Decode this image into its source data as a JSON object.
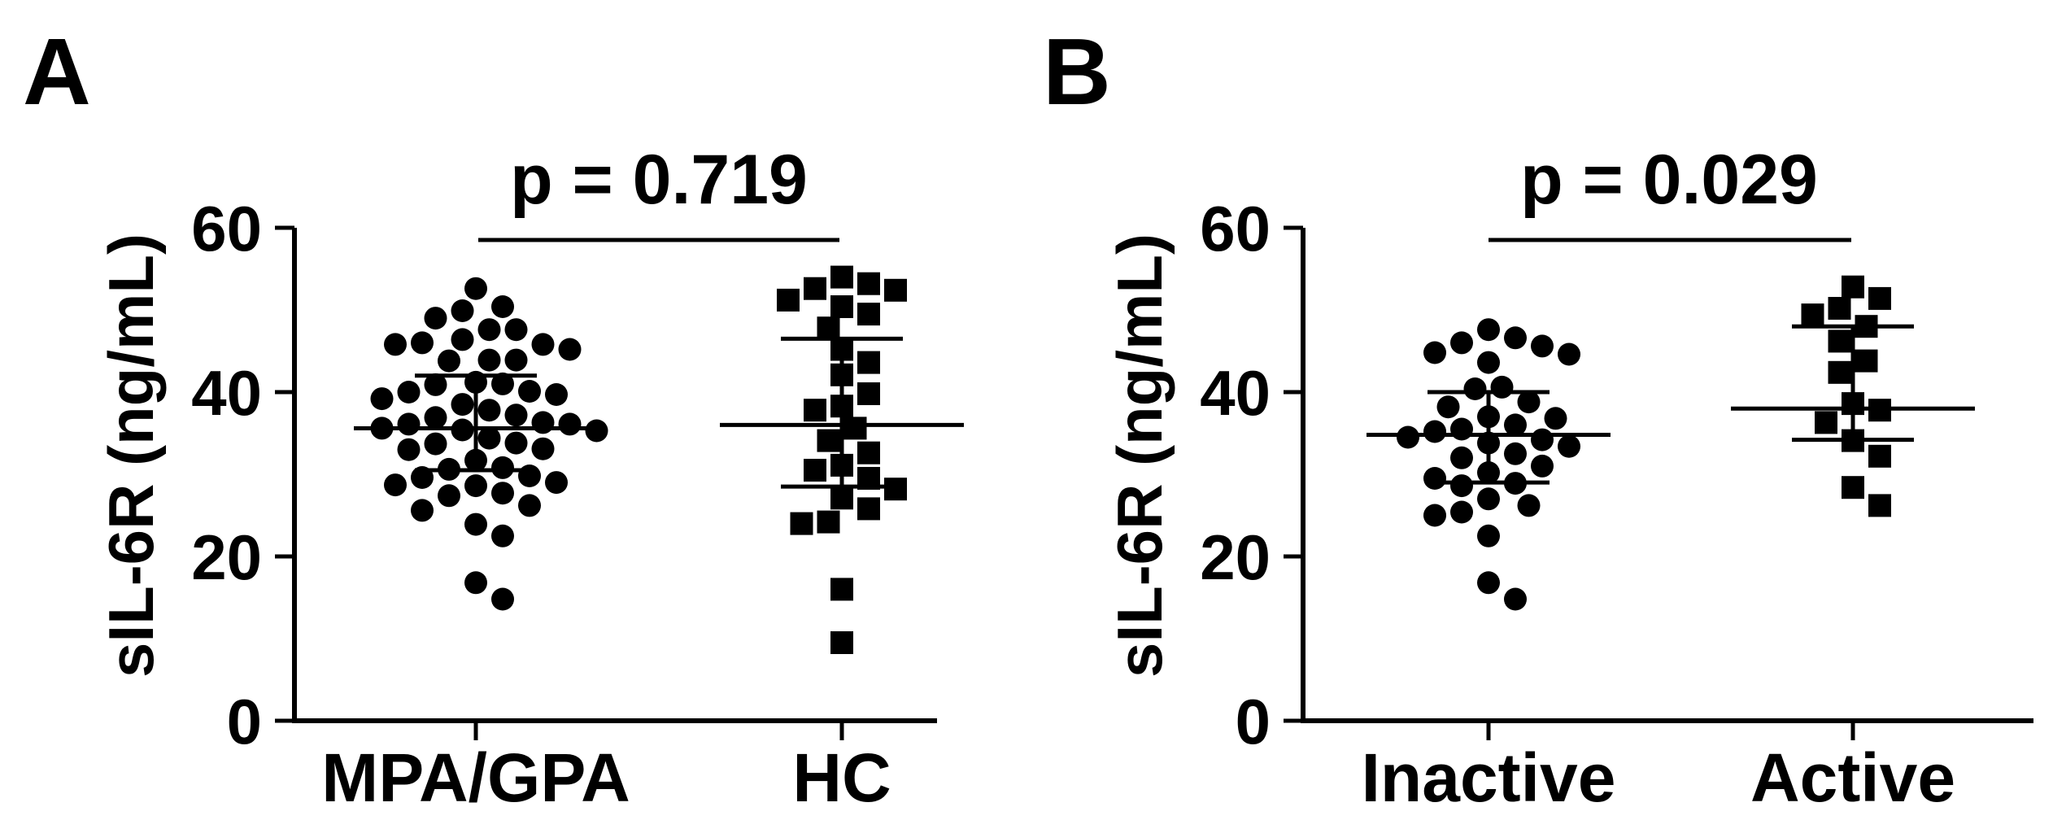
{
  "chart_data": [
    {
      "panel": "A",
      "type": "scatter",
      "ylabel": "sIL-6R (ng/mL)",
      "ylim": [
        0,
        60
      ],
      "yticks": [
        "0",
        "20",
        "40",
        "60"
      ],
      "categories": [
        "MPA/GPA",
        "HC"
      ],
      "annotation": "p = 0.719",
      "series": [
        {
          "category": "MPA/GPA",
          "marker": "circle",
          "mean": 35.6,
          "sd_low": 30.5,
          "sd_high": 42.0,
          "values": [
            52.6,
            50.4,
            49.9,
            49.0,
            47.6,
            47.6,
            46.4,
            46.0,
            45.8,
            45.8,
            45.2,
            43.9,
            43.9,
            43.8,
            41.2,
            41.0,
            40.9,
            40.1,
            40.0,
            39.7,
            39.2,
            38.5,
            37.8,
            37.2,
            36.9,
            36.3,
            36.1,
            36.1,
            35.6,
            35.4,
            35.3,
            34.4,
            33.8,
            33.7,
            33.1,
            33.0,
            31.7,
            30.8,
            30.6,
            29.8,
            29.6,
            29.0,
            28.7,
            28.6,
            27.7,
            27.4,
            26.2,
            25.6,
            23.9,
            22.5,
            16.8,
            14.8
          ]
        },
        {
          "category": "HC",
          "marker": "square",
          "mean": 36.0,
          "sd_low": 28.5,
          "sd_high": 46.5,
          "values": [
            54.0,
            53.2,
            52.6,
            52.4,
            51.2,
            50.4,
            49.5,
            47.8,
            45.2,
            43.6,
            42.1,
            39.8,
            38.3,
            37.8,
            35.6,
            34.1,
            32.6,
            31.1,
            30.5,
            29.5,
            28.2,
            27.1,
            25.8,
            24.2,
            24.0,
            16.0,
            9.5
          ]
        }
      ]
    },
    {
      "panel": "B",
      "type": "scatter",
      "ylabel": "sIL-6R (ng/mL)",
      "ylim": [
        0,
        60
      ],
      "yticks": [
        "0",
        "20",
        "40",
        "60"
      ],
      "categories": [
        "Inactive",
        "Active"
      ],
      "annotation": "p = 0.029",
      "series": [
        {
          "category": "Inactive",
          "marker": "circle",
          "mean": 34.8,
          "sd_low": 29.0,
          "sd_high": 40.0,
          "values": [
            47.6,
            46.6,
            46.0,
            45.6,
            44.8,
            44.6,
            43.6,
            40.6,
            40.4,
            38.8,
            38.2,
            37.0,
            36.8,
            36.0,
            35.5,
            35.2,
            34.5,
            34.2,
            33.8,
            33.4,
            32.5,
            32.0,
            31.0,
            30.2,
            29.5,
            28.9,
            28.6,
            27.0,
            26.2,
            25.4,
            25.0,
            22.5,
            16.8,
            14.8
          ]
        },
        {
          "category": "Active",
          "marker": "square",
          "mean": 38.0,
          "sd_low": 34.2,
          "sd_high": 48.0,
          "values": [
            52.8,
            51.4,
            50.2,
            49.4,
            48.0,
            46.2,
            43.8,
            42.4,
            38.6,
            37.8,
            36.3,
            34.1,
            32.2,
            28.4,
            26.2
          ]
        }
      ]
    }
  ]
}
